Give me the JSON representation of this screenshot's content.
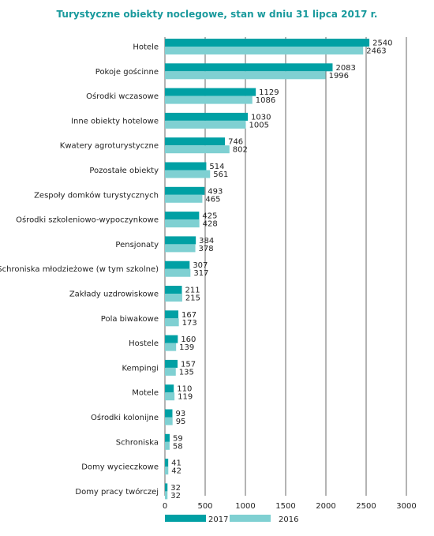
{
  "title_color": "#1a9a9d",
  "chart_data": {
    "type": "bar",
    "orientation": "horizontal",
    "title": "Turystyczne obiekty noclegowe, stan w dniu 31 lipca 2017 r.",
    "categories": [
      "Hotele",
      "Pokoje gościnne",
      "Ośrodki wczasowe",
      "Inne obiekty hotelowe",
      "Kwatery agroturystyczne",
      "Pozostałe obiekty",
      "Zespoły  domków turystycznych",
      "Ośrodki szkoleniowo-wypoczynkowe",
      "Pensjonaty",
      "Schroniska młodzieżowe (w tym szkolne)",
      "Zakłady uzdrowiskowe",
      "Pola biwakowe",
      "Hostele",
      "Kempingi",
      "Motele",
      "Ośrodki kolonijne",
      "Schroniska",
      "Domy wycieczkowe",
      "Domy pracy twórczej"
    ],
    "series": [
      {
        "name": "2017",
        "color": "#00a0a4",
        "values": [
          2540,
          2083,
          1129,
          1030,
          746,
          514,
          493,
          425,
          384,
          307,
          211,
          167,
          160,
          157,
          110,
          93,
          59,
          41,
          32
        ]
      },
      {
        "name": "2016",
        "color": "#7fd0d2",
        "values": [
          2463,
          1996,
          1086,
          1005,
          802,
          561,
          465,
          428,
          378,
          317,
          215,
          173,
          139,
          135,
          119,
          95,
          58,
          42,
          32
        ]
      }
    ],
    "xlim": [
      0,
      3000
    ],
    "xticks": [
      0,
      500,
      1000,
      1500,
      2000,
      2500,
      3000
    ],
    "grid": true,
    "legend": "bottom-left"
  }
}
